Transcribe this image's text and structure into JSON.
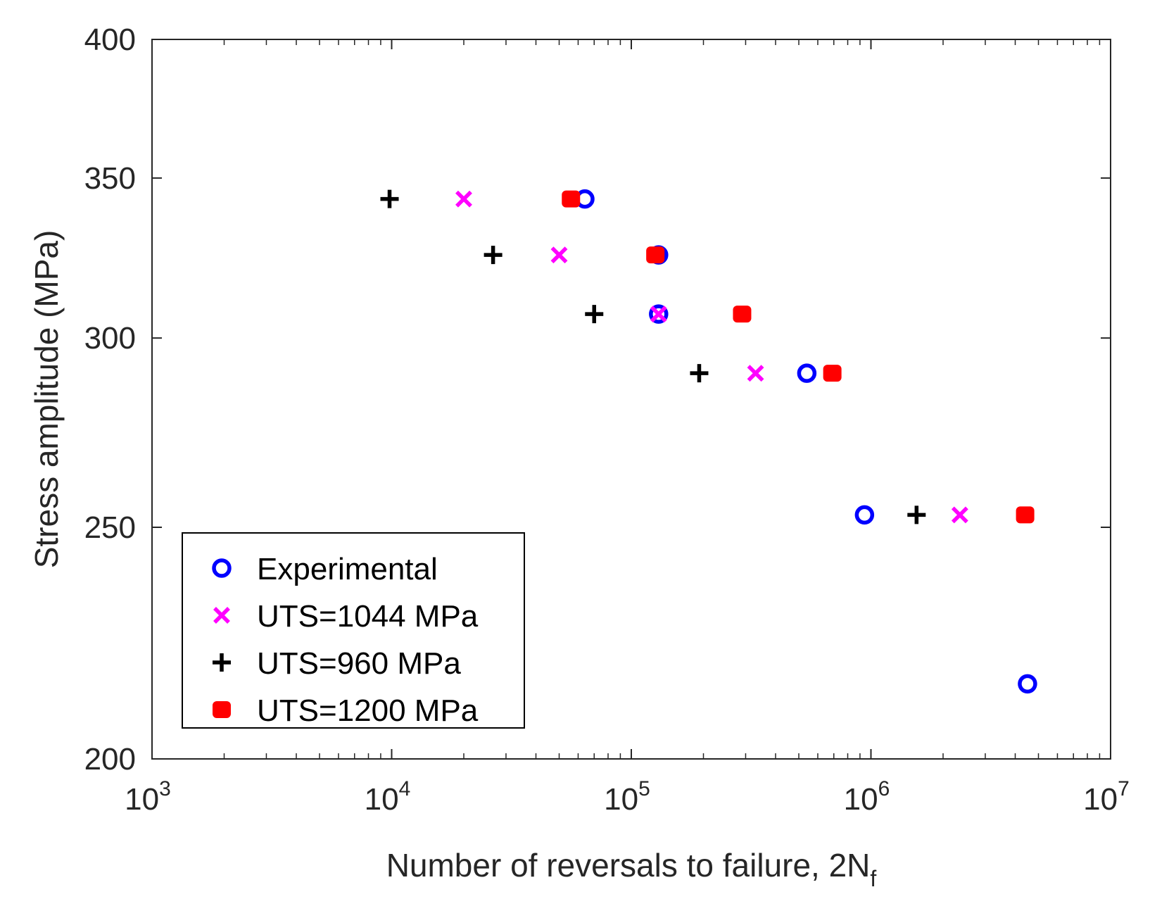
{
  "chart_data": {
    "type": "scatter",
    "title": "",
    "xlabel": "Number of reversals to failure, 2N",
    "xlabel_subscript": "f",
    "ylabel": "Stress amplitude (MPa)",
    "xscale": "log",
    "yscale": "log",
    "xlim": [
      1000,
      10000000
    ],
    "ylim": [
      200,
      400
    ],
    "grid": false,
    "legend_position": "bottom-left",
    "x_ticks": [
      {
        "value": 1000,
        "base": "10",
        "exp": "3"
      },
      {
        "value": 10000,
        "base": "10",
        "exp": "4"
      },
      {
        "value": 100000,
        "base": "10",
        "exp": "5"
      },
      {
        "value": 1000000,
        "base": "10",
        "exp": "6"
      },
      {
        "value": 10000000,
        "base": "10",
        "exp": "7"
      }
    ],
    "y_ticks": [
      {
        "value": 200,
        "label": "200"
      },
      {
        "value": 250,
        "label": "250"
      },
      {
        "value": 300,
        "label": "300"
      },
      {
        "value": 350,
        "label": "350"
      },
      {
        "value": 400,
        "label": "400"
      }
    ],
    "series": [
      {
        "name": "Experimental",
        "marker": "circle",
        "color": "#0000ff",
        "points": [
          {
            "x": 64000,
            "y": 343
          },
          {
            "x": 130000,
            "y": 325
          },
          {
            "x": 130000,
            "y": 307
          },
          {
            "x": 540000,
            "y": 290
          },
          {
            "x": 940000,
            "y": 253
          },
          {
            "x": 4500000,
            "y": 215
          }
        ]
      },
      {
        "name": "UTS=1044 MPa",
        "marker": "x",
        "color": "#ff00ff",
        "points": [
          {
            "x": 20000,
            "y": 343
          },
          {
            "x": 50000,
            "y": 325
          },
          {
            "x": 130000,
            "y": 307
          },
          {
            "x": 330000,
            "y": 290
          },
          {
            "x": 2350000,
            "y": 253
          }
        ]
      },
      {
        "name": "UTS=960 MPa",
        "marker": "plus",
        "color": "#000000",
        "points": [
          {
            "x": 9800,
            "y": 343
          },
          {
            "x": 26500,
            "y": 325
          },
          {
            "x": 70000,
            "y": 307
          },
          {
            "x": 192000,
            "y": 290
          },
          {
            "x": 1550000,
            "y": 253
          }
        ]
      },
      {
        "name": "UTS=1200 MPa",
        "marker": "square",
        "color": "#ff0000",
        "points": [
          {
            "x": 56000,
            "y": 343
          },
          {
            "x": 126000,
            "y": 325
          },
          {
            "x": 290000,
            "y": 307
          },
          {
            "x": 690000,
            "y": 290
          },
          {
            "x": 4400000,
            "y": 253
          }
        ]
      }
    ]
  }
}
